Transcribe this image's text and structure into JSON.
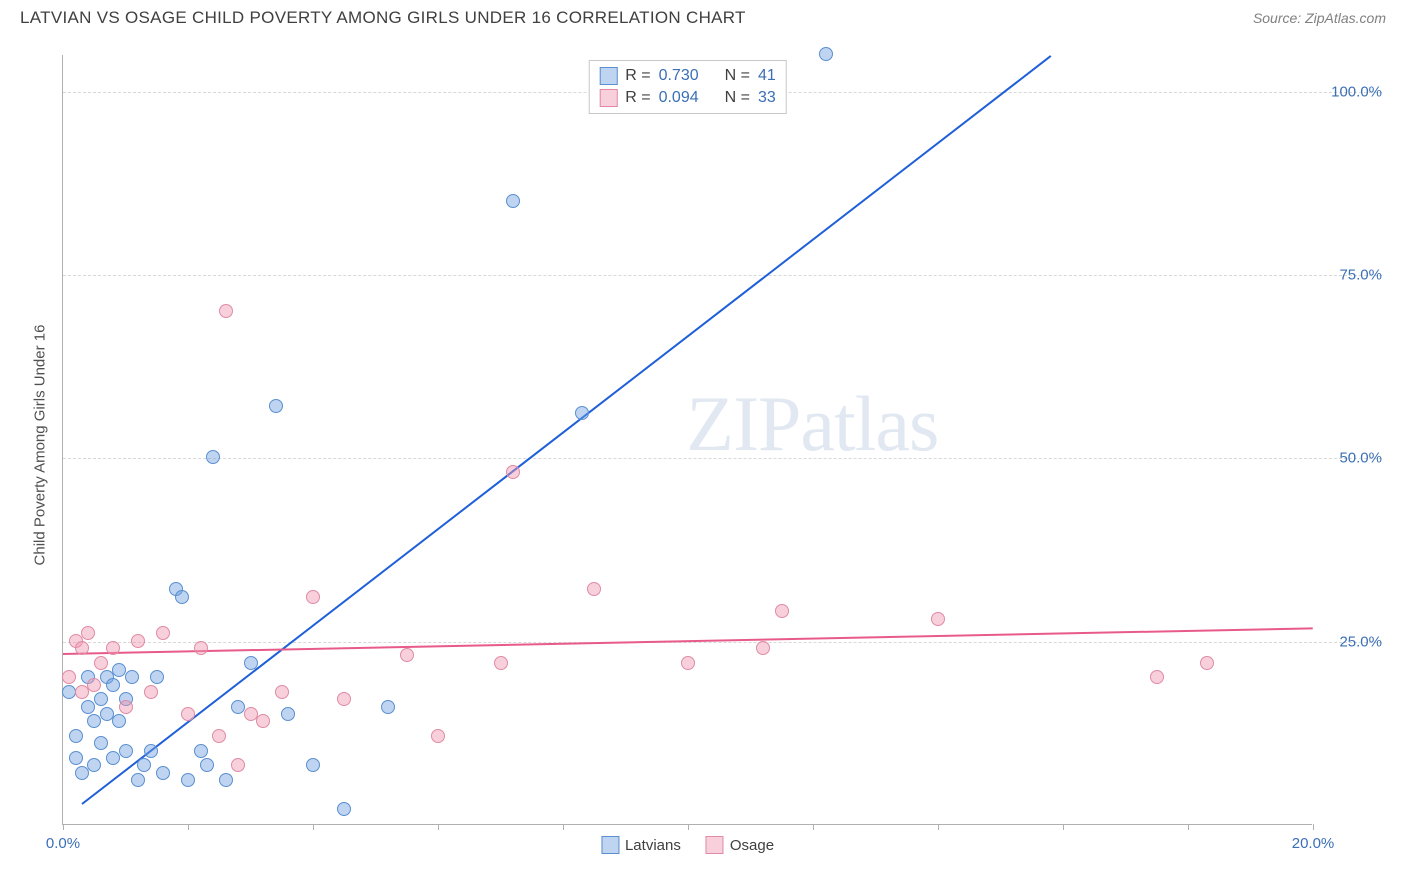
{
  "title": "LATVIAN VS OSAGE CHILD POVERTY AMONG GIRLS UNDER 16 CORRELATION CHART",
  "source": "Source: ZipAtlas.com",
  "ylabel": "Child Poverty Among Girls Under 16",
  "watermark_bold": "ZIP",
  "watermark_thin": "atlas",
  "chart": {
    "type": "scatter",
    "xlim": [
      0,
      20
    ],
    "ylim": [
      0,
      105
    ],
    "xticks": [
      0,
      2,
      4,
      6,
      8,
      10,
      12,
      14,
      16,
      18,
      20
    ],
    "xtick_labels": {
      "0": "0.0%",
      "20": "20.0%"
    },
    "yticks": [
      25,
      50,
      75,
      100
    ],
    "ytick_labels": {
      "25": "25.0%",
      "50": "50.0%",
      "75": "75.0%",
      "100": "100.0%"
    },
    "background_color": "#ffffff",
    "grid_color": "#d8d8d8",
    "axis_color": "#b0b0b0",
    "tick_label_color": "#3b6fb6",
    "marker_size": 14,
    "series": [
      {
        "name": "Latvians",
        "fill": "rgba(110,160,225,0.45)",
        "stroke": "#5a8fd0",
        "trend_color": "#1f5fd8",
        "r": "0.730",
        "n": "41",
        "trend": {
          "x1": 0.3,
          "y1": 3,
          "x2": 15.8,
          "y2": 105
        },
        "points": [
          [
            0.1,
            18
          ],
          [
            0.2,
            9
          ],
          [
            0.2,
            12
          ],
          [
            0.3,
            7
          ],
          [
            0.4,
            16
          ],
          [
            0.4,
            20
          ],
          [
            0.5,
            14
          ],
          [
            0.5,
            8
          ],
          [
            0.6,
            17
          ],
          [
            0.6,
            11
          ],
          [
            0.7,
            20
          ],
          [
            0.7,
            15
          ],
          [
            0.8,
            9
          ],
          [
            0.8,
            19
          ],
          [
            0.9,
            21
          ],
          [
            0.9,
            14
          ],
          [
            1.0,
            10
          ],
          [
            1.0,
            17
          ],
          [
            1.1,
            20
          ],
          [
            1.2,
            6
          ],
          [
            1.3,
            8
          ],
          [
            1.5,
            20
          ],
          [
            1.6,
            7
          ],
          [
            1.8,
            32
          ],
          [
            1.9,
            31
          ],
          [
            2.0,
            6
          ],
          [
            2.2,
            10
          ],
          [
            2.3,
            8
          ],
          [
            2.4,
            50
          ],
          [
            2.6,
            6
          ],
          [
            2.8,
            16
          ],
          [
            3.0,
            22
          ],
          [
            3.4,
            57
          ],
          [
            3.6,
            15
          ],
          [
            4.0,
            8
          ],
          [
            4.5,
            2
          ],
          [
            5.2,
            16
          ],
          [
            7.2,
            85
          ],
          [
            8.3,
            56
          ],
          [
            12.2,
            105
          ],
          [
            1.4,
            10
          ]
        ]
      },
      {
        "name": "Osage",
        "fill": "rgba(240,150,175,0.45)",
        "stroke": "#e08aa5",
        "trend_color": "#e85a8a",
        "r": "0.094",
        "n": "33",
        "trend": {
          "x1": 0,
          "y1": 23.5,
          "x2": 20,
          "y2": 27
        },
        "points": [
          [
            0.1,
            20
          ],
          [
            0.2,
            25
          ],
          [
            0.3,
            18
          ],
          [
            0.3,
            24
          ],
          [
            0.4,
            26
          ],
          [
            0.5,
            19
          ],
          [
            0.6,
            22
          ],
          [
            0.8,
            24
          ],
          [
            1.0,
            16
          ],
          [
            1.2,
            25
          ],
          [
            1.4,
            18
          ],
          [
            1.6,
            26
          ],
          [
            2.0,
            15
          ],
          [
            2.2,
            24
          ],
          [
            2.5,
            12
          ],
          [
            2.6,
            70
          ],
          [
            2.8,
            8
          ],
          [
            3.2,
            14
          ],
          [
            3.5,
            18
          ],
          [
            4.0,
            31
          ],
          [
            4.5,
            17
          ],
          [
            5.5,
            23
          ],
          [
            6.0,
            12
          ],
          [
            7.0,
            22
          ],
          [
            7.2,
            48
          ],
          [
            8.5,
            32
          ],
          [
            10.0,
            22
          ],
          [
            11.2,
            24
          ],
          [
            11.5,
            29
          ],
          [
            14.0,
            28
          ],
          [
            17.5,
            20
          ],
          [
            18.3,
            22
          ],
          [
            3.0,
            15
          ]
        ]
      }
    ],
    "legend_top_labels": {
      "r_label": "R =",
      "n_label": "N ="
    },
    "legend_bottom": [
      "Latvians",
      "Osage"
    ]
  }
}
